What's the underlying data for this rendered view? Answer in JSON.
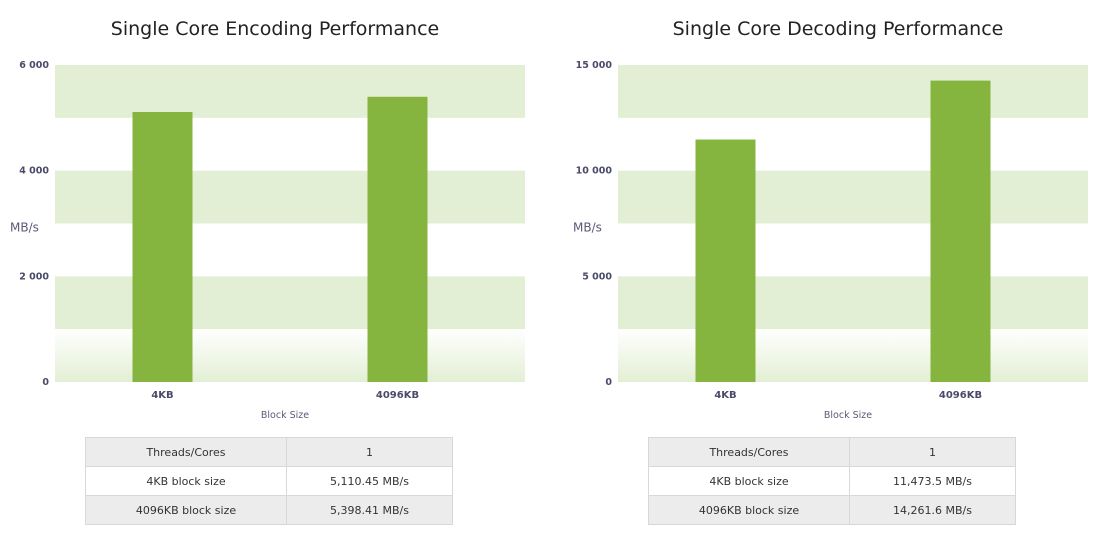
{
  "charts": [
    {
      "title": "Single Core Encoding Performance",
      "table": [
        {
          "label": "Threads/Cores",
          "value": "1"
        },
        {
          "label": "4KB block size",
          "value": "5,110.45 MB/s"
        },
        {
          "label": "4096KB block size",
          "value": "5,398.41 MB/s"
        }
      ]
    },
    {
      "title": "Single Core Decoding Performance",
      "table": [
        {
          "label": "Threads/Cores",
          "value": "1"
        },
        {
          "label": "4KB block size",
          "value": "11,473.5 MB/s"
        },
        {
          "label": "4096KB block size",
          "value": "14,261.6 MB/s"
        }
      ]
    }
  ],
  "chart_data": [
    {
      "type": "bar",
      "title": "Single Core Encoding Performance",
      "categories": [
        "4KB",
        "4096KB"
      ],
      "values": [
        5110.45,
        5398.41
      ],
      "xlabel": "Block Size",
      "ylabel": "MB/s",
      "ylim": [
        0,
        6000
      ],
      "yticks": [
        0,
        2000,
        4000,
        6000
      ],
      "ytick_labels": [
        "0",
        "2 000",
        "4 000",
        "6 000"
      ],
      "bar_color": "#85b53e",
      "band_color": "#e3efd4",
      "grid": true
    },
    {
      "type": "bar",
      "title": "Single Core Decoding Performance",
      "categories": [
        "4KB",
        "4096KB"
      ],
      "values": [
        11473.5,
        14261.6
      ],
      "xlabel": "Block Size",
      "ylabel": "MB/s",
      "ylim": [
        0,
        15000
      ],
      "yticks": [
        0,
        5000,
        10000,
        15000
      ],
      "ytick_labels": [
        "0",
        "5 000",
        "10 000",
        "15 000"
      ],
      "bar_color": "#85b53e",
      "band_color": "#e3efd4",
      "grid": true
    }
  ]
}
